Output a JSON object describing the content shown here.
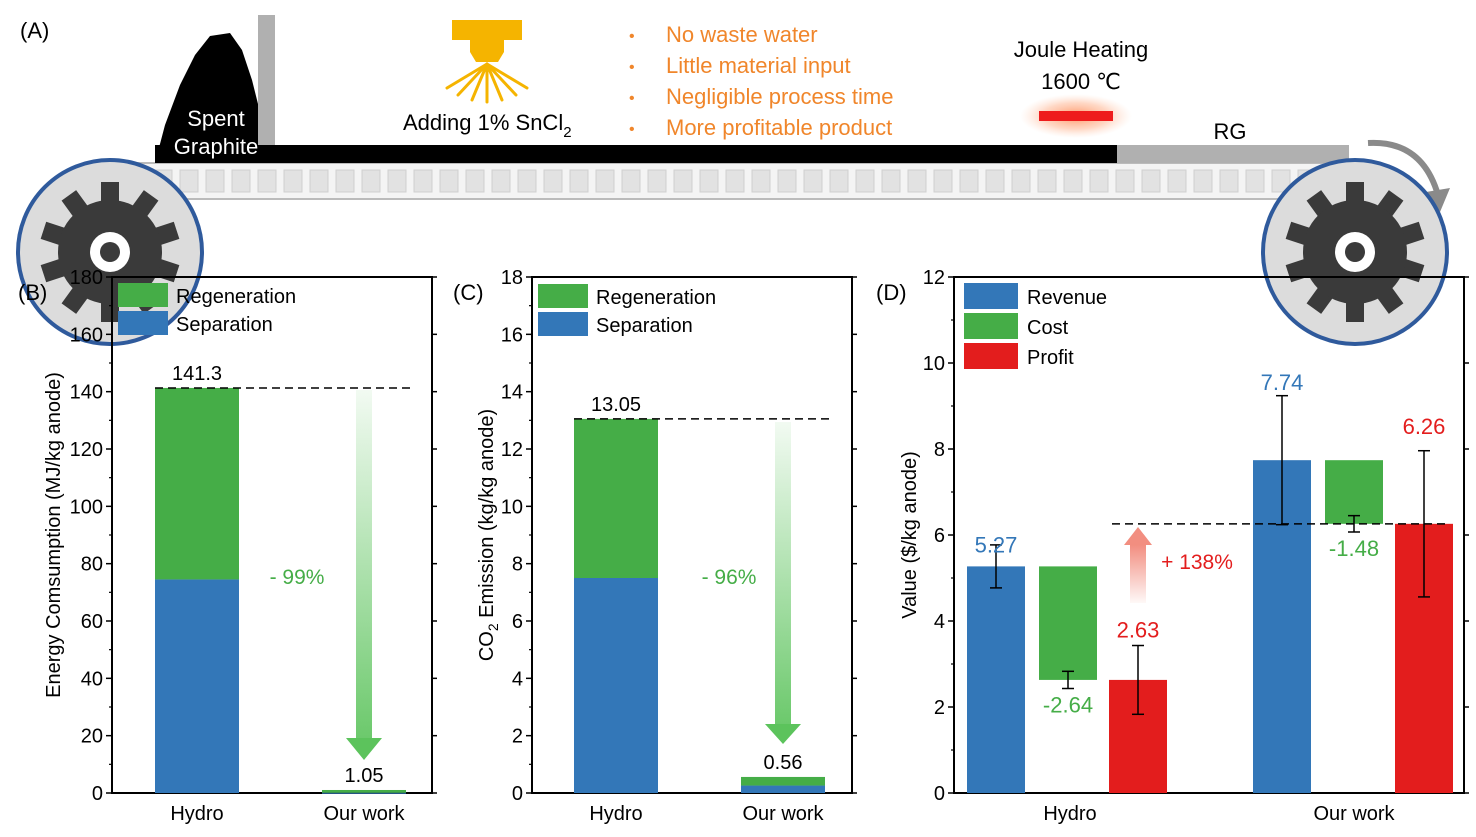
{
  "colors": {
    "separation": "#3377b8",
    "regeneration": "#45ad47",
    "revenue": "#3377b8",
    "cost": "#45ad47",
    "profit": "#e31d1d",
    "orange": "#f0862b",
    "arrow_green": "#5cc35c",
    "arrow_red": "#f07a6a",
    "gray": "#b0b0b0",
    "belt_dark": "#000000",
    "wheel_blue": "#2f5a9c"
  },
  "panel_a": {
    "label": "(A)",
    "graphite_line1": "Spent",
    "graphite_line2": "Graphite",
    "adding_text": "Adding 1% SnCl",
    "adding_sub": "2",
    "bullets": [
      "No waste water",
      "Little material input",
      "Negligible process time",
      "More profitable product"
    ],
    "joule_line1": "Joule Heating",
    "joule_line2": "1600 ℃",
    "product": "RG"
  },
  "chart_data": [
    {
      "id": "B",
      "label": "(B)",
      "type": "bar",
      "stacked": true,
      "categories": [
        "Hydro",
        "Our work"
      ],
      "series": [
        {
          "name": "Separation",
          "values": [
            74.5,
            0.1
          ]
        },
        {
          "name": "Regeneration",
          "values": [
            66.8,
            0.95
          ]
        }
      ],
      "totals": [
        "141.3",
        "1.05"
      ],
      "ylabel": "Energy Comsumption (MJ/kg anode)",
      "ylim": [
        0,
        180
      ],
      "yticks": [
        0,
        20,
        40,
        60,
        80,
        100,
        120,
        140,
        160,
        180
      ],
      "legend": [
        "Regeneration",
        "Separation"
      ],
      "reduction": "- 99%"
    },
    {
      "id": "C",
      "label": "(C)",
      "type": "bar",
      "stacked": true,
      "categories": [
        "Hydro",
        "Our work"
      ],
      "series": [
        {
          "name": "Separation",
          "values": [
            7.5,
            0.26
          ]
        },
        {
          "name": "Regeneration",
          "values": [
            5.55,
            0.3
          ]
        }
      ],
      "totals": [
        "13.05",
        "0.56"
      ],
      "ylabel_pre": "CO",
      "ylabel_sub": "2",
      "ylabel_post": " Emission (kg/kg anode)",
      "ylim": [
        0,
        18
      ],
      "yticks": [
        0,
        2,
        4,
        6,
        8,
        10,
        12,
        14,
        16,
        18
      ],
      "legend": [
        "Regeneration",
        "Separation"
      ],
      "reduction": "- 96%"
    },
    {
      "id": "D",
      "label": "(D)",
      "type": "bar",
      "categories": [
        "Hydro",
        "Our work"
      ],
      "series": [
        {
          "name": "Revenue",
          "base": [
            0,
            0
          ],
          "values": [
            5.27,
            7.74
          ],
          "err_low": [
            4.77,
            6.24
          ],
          "err_high": [
            5.77,
            9.24
          ],
          "labels": [
            "5.27",
            "7.74"
          ]
        },
        {
          "name": "Cost",
          "base": [
            5.27,
            7.74
          ],
          "values": [
            2.63,
            6.26
          ],
          "err_center": [
            2.63,
            6.26
          ],
          "err_low": [
            2.43,
            6.07
          ],
          "err_high": [
            2.83,
            6.45
          ],
          "labels": [
            "-2.64",
            "-1.48"
          ]
        },
        {
          "name": "Profit",
          "base": [
            0,
            0
          ],
          "values": [
            2.63,
            6.26
          ],
          "err_low": [
            1.83,
            4.56
          ],
          "err_high": [
            3.43,
            7.96
          ],
          "labels": [
            "2.63",
            "6.26"
          ]
        }
      ],
      "ylabel": "Value ($/kg anode)",
      "ylim": [
        0,
        12
      ],
      "yticks": [
        0,
        2,
        4,
        6,
        8,
        10,
        12
      ],
      "legend": [
        "Revenue",
        "Cost",
        "Profit"
      ],
      "reference_line": 6.26,
      "increase": "+ 138%"
    }
  ]
}
